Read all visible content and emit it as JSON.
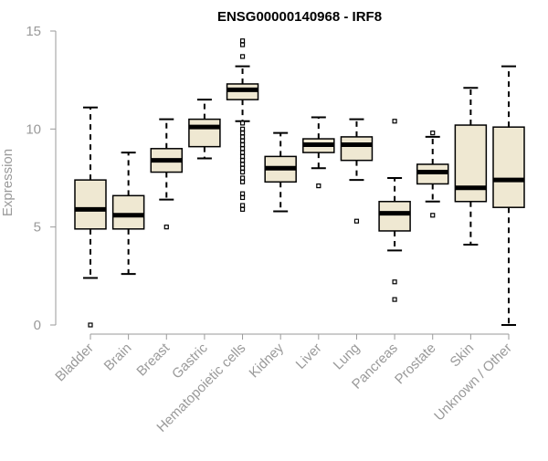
{
  "chart_data": {
    "type": "boxplot",
    "title": "ENSG00000140968 - IRF8",
    "xlabel": "",
    "ylabel": "Expression",
    "ylim": [
      0,
      15
    ],
    "yticks": [
      0,
      5,
      10,
      15
    ],
    "grid": false,
    "categories": [
      "Bladder",
      "Brain",
      "Breast",
      "Gastric",
      "Hematopoietic cells",
      "Kidney",
      "Liver",
      "Lung",
      "Pancreas",
      "Prostate",
      "Skin",
      "Unknown / Other"
    ],
    "boxes": [
      {
        "category": "Bladder",
        "whisker_low": 2.4,
        "q1": 4.9,
        "median": 5.9,
        "q3": 7.4,
        "whisker_high": 11.1,
        "outliers": [
          0.0
        ]
      },
      {
        "category": "Brain",
        "whisker_low": 2.6,
        "q1": 4.9,
        "median": 5.6,
        "q3": 6.6,
        "whisker_high": 8.8,
        "outliers": []
      },
      {
        "category": "Breast",
        "whisker_low": 6.4,
        "q1": 7.8,
        "median": 8.4,
        "q3": 9.0,
        "whisker_high": 10.5,
        "outliers": [
          5.0
        ]
      },
      {
        "category": "Gastric",
        "whisker_low": 8.5,
        "q1": 9.1,
        "median": 10.1,
        "q3": 10.5,
        "whisker_high": 11.5,
        "outliers": []
      },
      {
        "category": "Hematopoietic cells",
        "whisker_low": 10.4,
        "q1": 11.5,
        "median": 12.0,
        "q3": 12.3,
        "whisker_high": 13.2,
        "outliers": [
          14.5,
          14.3,
          13.7,
          10.3,
          10.0,
          9.8,
          9.6,
          9.4,
          9.2,
          9.0,
          8.8,
          8.6,
          8.4,
          8.2,
          8.0,
          7.8,
          7.5,
          7.3,
          6.7,
          6.5,
          6.1,
          5.9
        ]
      },
      {
        "category": "Kidney",
        "whisker_low": 5.8,
        "q1": 7.3,
        "median": 8.0,
        "q3": 8.6,
        "whisker_high": 9.8,
        "outliers": []
      },
      {
        "category": "Liver",
        "whisker_low": 8.0,
        "q1": 8.8,
        "median": 9.2,
        "q3": 9.5,
        "whisker_high": 10.6,
        "outliers": [
          7.1
        ]
      },
      {
        "category": "Lung",
        "whisker_low": 7.4,
        "q1": 8.4,
        "median": 9.2,
        "q3": 9.6,
        "whisker_high": 10.5,
        "outliers": [
          5.3
        ]
      },
      {
        "category": "Pancreas",
        "whisker_low": 3.8,
        "q1": 4.8,
        "median": 5.7,
        "q3": 6.3,
        "whisker_high": 7.5,
        "outliers": [
          10.4,
          2.2,
          1.3
        ]
      },
      {
        "category": "Prostate",
        "whisker_low": 6.3,
        "q1": 7.2,
        "median": 7.8,
        "q3": 8.2,
        "whisker_high": 9.6,
        "outliers": [
          9.8,
          5.6
        ]
      },
      {
        "category": "Skin",
        "whisker_low": 4.1,
        "q1": 6.3,
        "median": 7.0,
        "q3": 10.2,
        "whisker_high": 12.1,
        "outliers": []
      },
      {
        "category": "Unknown / Other",
        "whisker_low": 0.0,
        "q1": 6.0,
        "median": 7.4,
        "q3": 10.1,
        "whisker_high": 13.2,
        "outliers": []
      }
    ],
    "colors": {
      "box_fill": "#efe8d2",
      "box_stroke": "#000000",
      "median": "#000000",
      "axis": "#9a9a9a",
      "text": "#9a9a9a",
      "title": "#000000"
    }
  }
}
